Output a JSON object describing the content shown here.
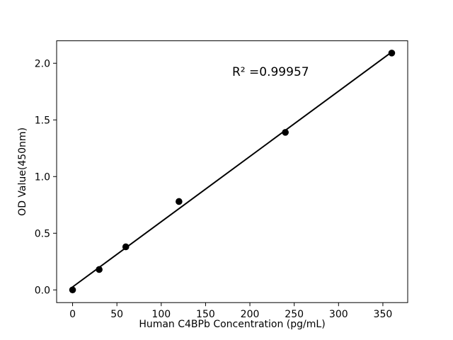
{
  "figure": {
    "background": "#ffffff"
  },
  "chart_data": {
    "type": "scatter",
    "title": "",
    "xlabel": "Human C4BPb Concentration (pg/mL)",
    "ylabel": "OD Value(450nm)",
    "annotation": "R² =0.99957",
    "x": [
      0,
      30,
      60,
      120,
      240,
      360
    ],
    "series": [
      {
        "name": "OD Value",
        "values": [
          0.0,
          0.18,
          0.38,
          0.78,
          1.39,
          2.09
        ]
      }
    ],
    "trendline": "linear",
    "xlim": [
      -18,
      378
    ],
    "ylim": [
      -0.112,
      2.198
    ],
    "xticks": [
      0,
      50,
      100,
      150,
      200,
      250,
      300,
      350
    ],
    "yticks": [
      0.0,
      0.5,
      1.0,
      1.5,
      2.0
    ],
    "grid": false,
    "legend": "none",
    "marker_color": "#000000",
    "line_color": "#000000",
    "axis_color": "#000000",
    "background": "#ffffff"
  }
}
